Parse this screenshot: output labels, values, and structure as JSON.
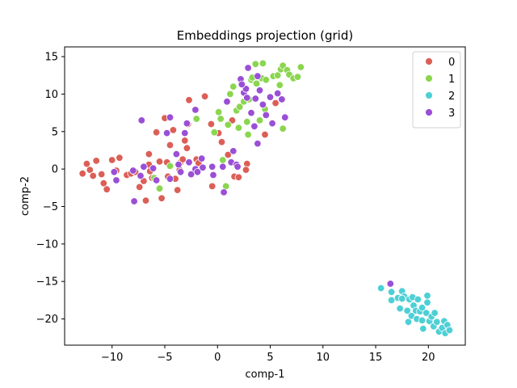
{
  "chart_data": {
    "type": "scatter",
    "title": "Embeddings projection (grid)",
    "xlabel": "comp-1",
    "ylabel": "comp-2",
    "xlim": [
      -14.5,
      23.5
    ],
    "ylim": [
      -23.5,
      16.3
    ],
    "xticks": [
      -10,
      -5,
      0,
      5,
      10,
      15,
      20
    ],
    "yticks": [
      -20,
      -15,
      -10,
      -5,
      0,
      5,
      10,
      15
    ],
    "tick_labels_x": [
      "−10",
      "−5",
      "0",
      "5",
      "10",
      "15",
      "20"
    ],
    "tick_labels_y": [
      "−20",
      "−15",
      "−10",
      "−5",
      "0",
      "5",
      "10",
      "15"
    ],
    "grid": false,
    "legend_position": "top-right",
    "series": [
      {
        "name": "0",
        "color": "#db5f57",
        "points": [
          [
            -12.8,
            -0.6
          ],
          [
            -12.4,
            0.7
          ],
          [
            -12.1,
            -0.1
          ],
          [
            -11.8,
            -0.9
          ],
          [
            -11.5,
            1.1
          ],
          [
            -11.0,
            -0.7
          ],
          [
            -10.8,
            -1.9
          ],
          [
            -10.5,
            -2.7
          ],
          [
            -10.0,
            1.2
          ],
          [
            -9.6,
            -0.2
          ],
          [
            -9.3,
            1.5
          ],
          [
            -8.6,
            -0.8
          ],
          [
            -8.2,
            -0.6
          ],
          [
            -7.8,
            -0.4
          ],
          [
            -7.4,
            -2.4
          ],
          [
            -7.0,
            -1.6
          ],
          [
            -6.8,
            -4.2
          ],
          [
            -6.5,
            2.0
          ],
          [
            -6.5,
            0.6
          ],
          [
            -6.4,
            -0.3
          ],
          [
            -6.2,
            -1.2
          ],
          [
            -5.8,
            4.9
          ],
          [
            -5.5,
            1.0
          ],
          [
            -5.3,
            -3.9
          ],
          [
            -5.0,
            6.8
          ],
          [
            -4.8,
            0.9
          ],
          [
            -4.7,
            -1.0
          ],
          [
            -4.5,
            3.2
          ],
          [
            -4.2,
            5.2
          ],
          [
            -4.0,
            -1.3
          ],
          [
            -3.8,
            -2.8
          ],
          [
            -3.6,
            -0.1
          ],
          [
            -3.5,
            0.9
          ],
          [
            -3.3,
            1.3
          ],
          [
            -3.1,
            3.8
          ],
          [
            -2.9,
            2.8
          ],
          [
            -2.8,
            6.0
          ],
          [
            -2.7,
            9.2
          ],
          [
            -2.4,
            -0.6
          ],
          [
            -2.0,
            1.3
          ],
          [
            -1.8,
            0.8
          ],
          [
            -1.2,
            9.7
          ],
          [
            -0.6,
            6.0
          ],
          [
            -0.5,
            -2.3
          ],
          [
            0.1,
            4.8
          ],
          [
            0.4,
            3.6
          ],
          [
            1.0,
            1.9
          ],
          [
            1.4,
            6.5
          ],
          [
            1.6,
            -1.0
          ],
          [
            2.0,
            -1.1
          ],
          [
            2.8,
            0.7
          ],
          [
            2.7,
            -0.1
          ],
          [
            4.5,
            4.6
          ],
          [
            5.5,
            8.8
          ]
        ]
      },
      {
        "name": "1",
        "color": "#8ad64f",
        "points": [
          [
            -6.0,
            -1.2
          ],
          [
            -5.5,
            -2.6
          ],
          [
            -4.5,
            0.4
          ],
          [
            -2.0,
            6.7
          ],
          [
            -0.3,
            4.9
          ],
          [
            0.1,
            7.6
          ],
          [
            0.3,
            6.7
          ],
          [
            0.5,
            1.2
          ],
          [
            0.8,
            -2.3
          ],
          [
            1.0,
            5.9
          ],
          [
            1.2,
            10.0
          ],
          [
            1.5,
            11.0
          ],
          [
            1.8,
            7.8
          ],
          [
            2.0,
            5.5
          ],
          [
            2.1,
            8.3
          ],
          [
            2.5,
            9.0
          ],
          [
            2.8,
            6.3
          ],
          [
            2.9,
            4.6
          ],
          [
            3.0,
            9.3
          ],
          [
            3.2,
            11.9
          ],
          [
            3.3,
            12.2
          ],
          [
            3.6,
            14.0
          ],
          [
            3.7,
            11.4
          ],
          [
            4.3,
            14.1
          ],
          [
            4.2,
            12.1
          ],
          [
            4.6,
            11.9
          ],
          [
            5.3,
            12.4
          ],
          [
            5.7,
            12.5
          ],
          [
            5.9,
            11.2
          ],
          [
            6.0,
            13.3
          ],
          [
            6.2,
            13.8
          ],
          [
            6.6,
            13.2
          ],
          [
            6.8,
            12.6
          ],
          [
            7.2,
            12.1
          ],
          [
            7.6,
            12.3
          ],
          [
            7.9,
            13.6
          ],
          [
            6.2,
            5.4
          ],
          [
            4.5,
            8.0
          ],
          [
            4.0,
            6.5
          ]
        ]
      },
      {
        "name": "2",
        "color": "#4dd0d5",
        "points": [
          [
            15.5,
            -15.9
          ],
          [
            16.5,
            -16.4
          ],
          [
            16.5,
            -17.5
          ],
          [
            17.1,
            -17.2
          ],
          [
            17.3,
            -18.6
          ],
          [
            17.5,
            -16.3
          ],
          [
            17.7,
            -17.0
          ],
          [
            18.0,
            -18.9
          ],
          [
            18.2,
            -17.4
          ],
          [
            18.4,
            -19.6
          ],
          [
            18.5,
            -17.1
          ],
          [
            18.6,
            -18.2
          ],
          [
            18.8,
            -18.9
          ],
          [
            18.9,
            -20.0
          ],
          [
            19.0,
            -17.4
          ],
          [
            19.2,
            -19.0
          ],
          [
            19.4,
            -20.2
          ],
          [
            19.4,
            -18.5
          ],
          [
            19.5,
            -21.3
          ],
          [
            19.8,
            -19.2
          ],
          [
            19.9,
            -17.8
          ],
          [
            19.9,
            -16.9
          ],
          [
            20.1,
            -20.3
          ],
          [
            20.3,
            -19.7
          ],
          [
            20.5,
            -21.0
          ],
          [
            20.6,
            -19.2
          ],
          [
            20.8,
            -20.4
          ],
          [
            21.0,
            -21.7
          ],
          [
            21.3,
            -21.2
          ],
          [
            21.5,
            -20.3
          ],
          [
            21.6,
            -21.9
          ],
          [
            21.8,
            -20.8
          ],
          [
            22.0,
            -21.5
          ],
          [
            18.1,
            -20.4
          ],
          [
            17.5,
            -17.3
          ]
        ]
      },
      {
        "name": "3",
        "color": "#9a4fd6",
        "points": [
          [
            -9.8,
            -0.4
          ],
          [
            -9.6,
            -1.5
          ],
          [
            -8.0,
            -0.2
          ],
          [
            -7.9,
            -4.3
          ],
          [
            -7.3,
            -0.9
          ],
          [
            -7.2,
            6.5
          ],
          [
            -7.0,
            0.3
          ],
          [
            -6.1,
            0.1
          ],
          [
            -5.8,
            -1.5
          ],
          [
            -4.8,
            4.8
          ],
          [
            -4.5,
            6.9
          ],
          [
            -4.5,
            -1.3
          ],
          [
            -3.9,
            2.0
          ],
          [
            -3.7,
            0.6
          ],
          [
            -3.5,
            -0.4
          ],
          [
            -3.1,
            4.8
          ],
          [
            -2.9,
            6.1
          ],
          [
            -2.7,
            0.9
          ],
          [
            -2.5,
            -0.7
          ],
          [
            -2.1,
            7.9
          ],
          [
            -2.1,
            0.0
          ],
          [
            -1.9,
            -0.4
          ],
          [
            -1.5,
            1.4
          ],
          [
            -1.4,
            0.2
          ],
          [
            -0.5,
            0.3
          ],
          [
            -0.4,
            -0.8
          ],
          [
            0.5,
            0.3
          ],
          [
            0.6,
            -3.1
          ],
          [
            0.9,
            9.0
          ],
          [
            1.3,
            0.9
          ],
          [
            1.5,
            2.4
          ],
          [
            1.8,
            0.6
          ],
          [
            1.9,
            0.3
          ],
          [
            2.2,
            12.0
          ],
          [
            2.5,
            10.2
          ],
          [
            2.7,
            10.7
          ],
          [
            2.8,
            9.5
          ],
          [
            2.9,
            13.5
          ],
          [
            3.2,
            7.5
          ],
          [
            3.5,
            5.7
          ],
          [
            3.6,
            9.4
          ],
          [
            3.8,
            12.4
          ],
          [
            4.0,
            10.5
          ],
          [
            4.3,
            8.6
          ],
          [
            4.6,
            7.2
          ],
          [
            5.0,
            9.6
          ],
          [
            5.2,
            6.1
          ],
          [
            5.7,
            10.1
          ],
          [
            6.1,
            9.3
          ],
          [
            6.4,
            6.9
          ],
          [
            16.4,
            -15.3
          ],
          [
            3.8,
            3.4
          ],
          [
            2.3,
            11.3
          ]
        ]
      }
    ]
  }
}
